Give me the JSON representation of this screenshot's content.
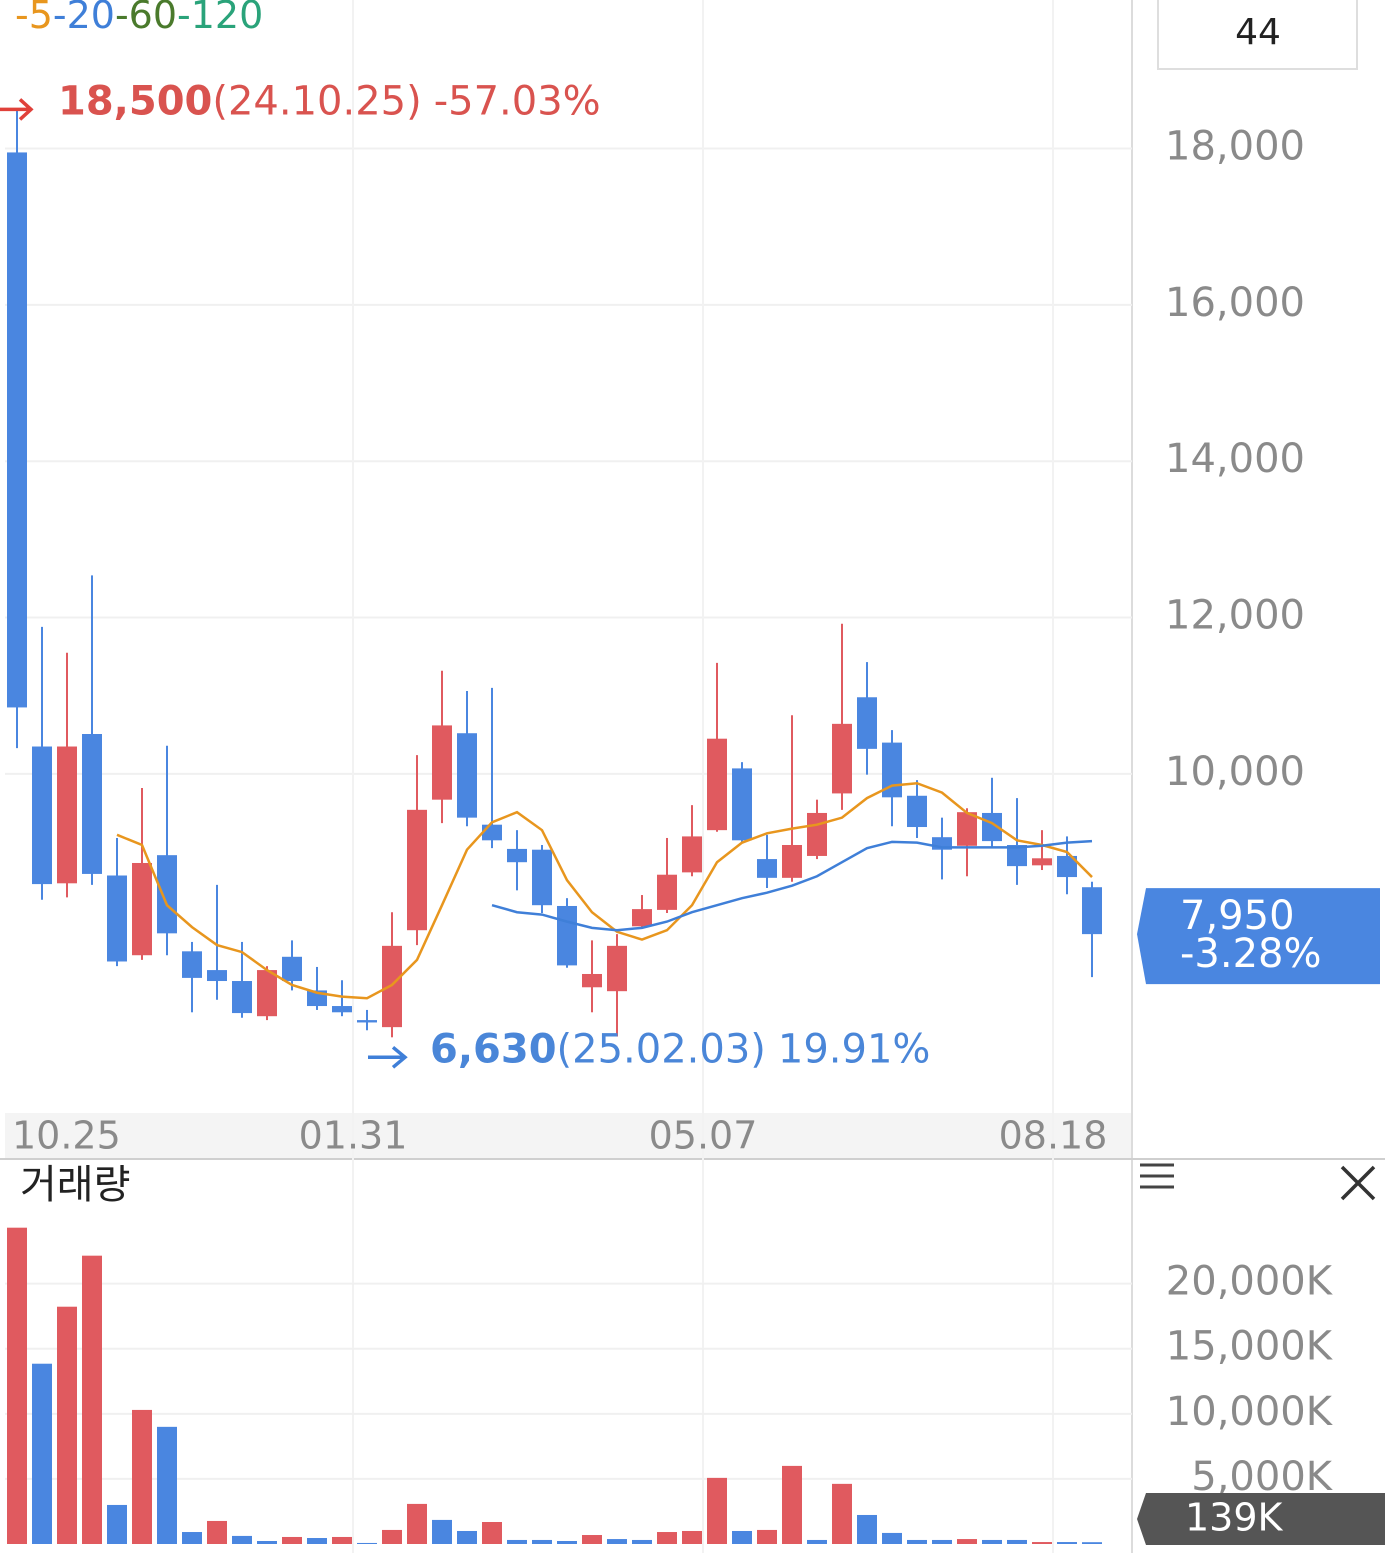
{
  "chart_data": [
    {
      "type": "candlestick",
      "count_label": "44",
      "up_color": "#e05a5f",
      "down_color": "#4a86e0",
      "categories": [
        "10.25",
        null,
        null,
        null,
        null,
        null,
        null,
        null,
        null,
        null,
        null,
        null,
        null,
        null,
        "01.31",
        null,
        null,
        null,
        null,
        null,
        null,
        null,
        null,
        null,
        null,
        null,
        null,
        null,
        "05.07",
        null,
        null,
        null,
        null,
        null,
        null,
        null,
        null,
        null,
        null,
        null,
        null,
        null,
        "08.18",
        null
      ],
      "open": [
        17950,
        10350,
        8600,
        10510,
        8700,
        7680,
        8960,
        7730,
        7490,
        7350,
        6900,
        7660,
        7230,
        7030,
        6850,
        6760,
        8000,
        9670,
        10520,
        9350,
        9040,
        9030,
        8310,
        7270,
        7220,
        8050,
        8260,
        8740,
        9280,
        10070,
        8910,
        8670,
        8950,
        9750,
        10980,
        10400,
        9720,
        9190,
        9080,
        9500,
        9090,
        8830,
        8950,
        8550
      ],
      "high": [
        18500,
        11880,
        11550,
        12540,
        9180,
        9820,
        10360,
        7850,
        8580,
        7850,
        7540,
        7870,
        7530,
        7360,
        6980,
        8230,
        10240,
        11320,
        11060,
        11100,
        9280,
        9090,
        8410,
        7870,
        7950,
        8450,
        9180,
        9600,
        11420,
        10150,
        9220,
        10750,
        9670,
        11920,
        11430,
        10560,
        9920,
        9440,
        9560,
        9950,
        9690,
        9280,
        9200,
        8620
      ],
      "low": [
        10330,
        8390,
        8420,
        8580,
        7540,
        7620,
        7680,
        6950,
        7110,
        6880,
        6850,
        7230,
        6980,
        6900,
        6720,
        6630,
        7810,
        9370,
        9330,
        9050,
        8510,
        8220,
        7520,
        6950,
        6640,
        8030,
        8220,
        8690,
        9260,
        9110,
        8540,
        8620,
        8910,
        9540,
        9990,
        9330,
        9180,
        8650,
        8690,
        9060,
        8580,
        8770,
        8460,
        7400
      ],
      "close": [
        10850,
        8590,
        10350,
        8720,
        7600,
        8860,
        7960,
        7390,
        7350,
        6940,
        7490,
        7350,
        7030,
        6950,
        6820,
        7800,
        9540,
        10620,
        9440,
        9150,
        8870,
        8320,
        7550,
        7440,
        7800,
        8270,
        8710,
        9200,
        10450,
        9150,
        8670,
        9090,
        9500,
        10640,
        10320,
        9700,
        9320,
        9030,
        9510,
        9140,
        8820,
        8920,
        8680,
        7950
      ],
      "series": [
        {
          "name": "-5",
          "color": "#e8961e",
          "values": [
            null,
            null,
            null,
            null,
            9220,
            9090,
            8320,
            8040,
            7810,
            7720,
            7490,
            7300,
            7200,
            7150,
            7130,
            7300,
            7620,
            8320,
            9030,
            9380,
            9510,
            9280,
            8640,
            8230,
            7980,
            7880,
            8000,
            8320,
            8870,
            9120,
            9240,
            9300,
            9350,
            9440,
            9690,
            9850,
            9880,
            9760,
            9500,
            9370,
            9150,
            9090,
            9000,
            8680
          ]
        },
        {
          "name": "-20",
          "color": "#3f7fd8",
          "values": [
            null,
            null,
            null,
            null,
            null,
            null,
            null,
            null,
            null,
            null,
            null,
            null,
            null,
            null,
            null,
            null,
            null,
            null,
            null,
            8320,
            8230,
            8200,
            8110,
            8030,
            8000,
            8030,
            8110,
            8230,
            8320,
            8410,
            8480,
            8570,
            8690,
            8870,
            9050,
            9130,
            9120,
            9060,
            9060,
            9060,
            9060,
            9080,
            9120,
            9140
          ]
        },
        {
          "name": "-60",
          "color": "#4a7a2c"
        },
        {
          "name": "-120",
          "color": "#2aa37a"
        }
      ],
      "ylim": [
        5700,
        19900
      ],
      "yticks": [
        {
          "value": 10000,
          "label": "10,000"
        },
        {
          "value": 12000,
          "label": "12,000"
        },
        {
          "value": 14000,
          "label": "14,000"
        },
        {
          "value": 16000,
          "label": "16,000"
        },
        {
          "value": 18000,
          "label": "18,000"
        }
      ],
      "grid": true,
      "max": {
        "value": 18500,
        "label": "18,500",
        "date": "(24.10.25)",
        "change": "-57.03%"
      },
      "min": {
        "value": 6630,
        "label": "6,630",
        "date": "(25.02.03)",
        "change": "19.91%"
      },
      "last_price": {
        "label": "7,950",
        "change": "-3.28%"
      }
    },
    {
      "type": "bar",
      "title": "거래량",
      "values": [
        24300,
        13850,
        18230,
        22150,
        3000,
        10300,
        9000,
        920,
        1770,
        620,
        230,
        540,
        460,
        540,
        80,
        1080,
        3080,
        1850,
        1000,
        1690,
        310,
        310,
        230,
        690,
        380,
        310,
        920,
        1000,
        5080,
        1000,
        1080,
        6000,
        310,
        4620,
        2230,
        850,
        310,
        310,
        380,
        310,
        310,
        150,
        150,
        139
      ],
      "value_labels": [
        null,
        null,
        null,
        null,
        null,
        null,
        null,
        null,
        null,
        null,
        null,
        null,
        null,
        null,
        null,
        null,
        null,
        null,
        null,
        null,
        null,
        null,
        null,
        null,
        null,
        null,
        null,
        null,
        null,
        null,
        null,
        null,
        null,
        null,
        null,
        null,
        null,
        null,
        null,
        null,
        null,
        null,
        null,
        "139K"
      ],
      "colors": [
        "#e05a5f",
        "#4a86e0",
        "#e05a5f",
        "#e05a5f",
        "#4a86e0",
        "#e05a5f",
        "#4a86e0",
        "#4a86e0",
        "#e05a5f",
        "#4a86e0",
        "#4a86e0",
        "#e05a5f",
        "#4a86e0",
        "#e05a5f",
        "#4a86e0",
        "#e05a5f",
        "#e05a5f",
        "#4a86e0",
        "#4a86e0",
        "#e05a5f",
        "#4a86e0",
        "#4a86e0",
        "#4a86e0",
        "#e05a5f",
        "#4a86e0",
        "#4a86e0",
        "#e05a5f",
        "#e05a5f",
        "#e05a5f",
        "#4a86e0",
        "#e05a5f",
        "#e05a5f",
        "#4a86e0",
        "#e05a5f",
        "#4a86e0",
        "#4a86e0",
        "#4a86e0",
        "#4a86e0",
        "#e05a5f",
        "#4a86e0",
        "#4a86e0",
        "#e05a5f",
        "#4a86e0",
        "#4a86e0"
      ],
      "ylim": [
        0,
        29500
      ],
      "yticks": [
        {
          "value": 5000,
          "label": "5,000K"
        },
        {
          "value": 10000,
          "label": "10,000K"
        },
        {
          "value": 15000,
          "label": "15,000K"
        },
        {
          "value": 20000,
          "label": "20,000K"
        }
      ],
      "grid": true
    }
  ]
}
